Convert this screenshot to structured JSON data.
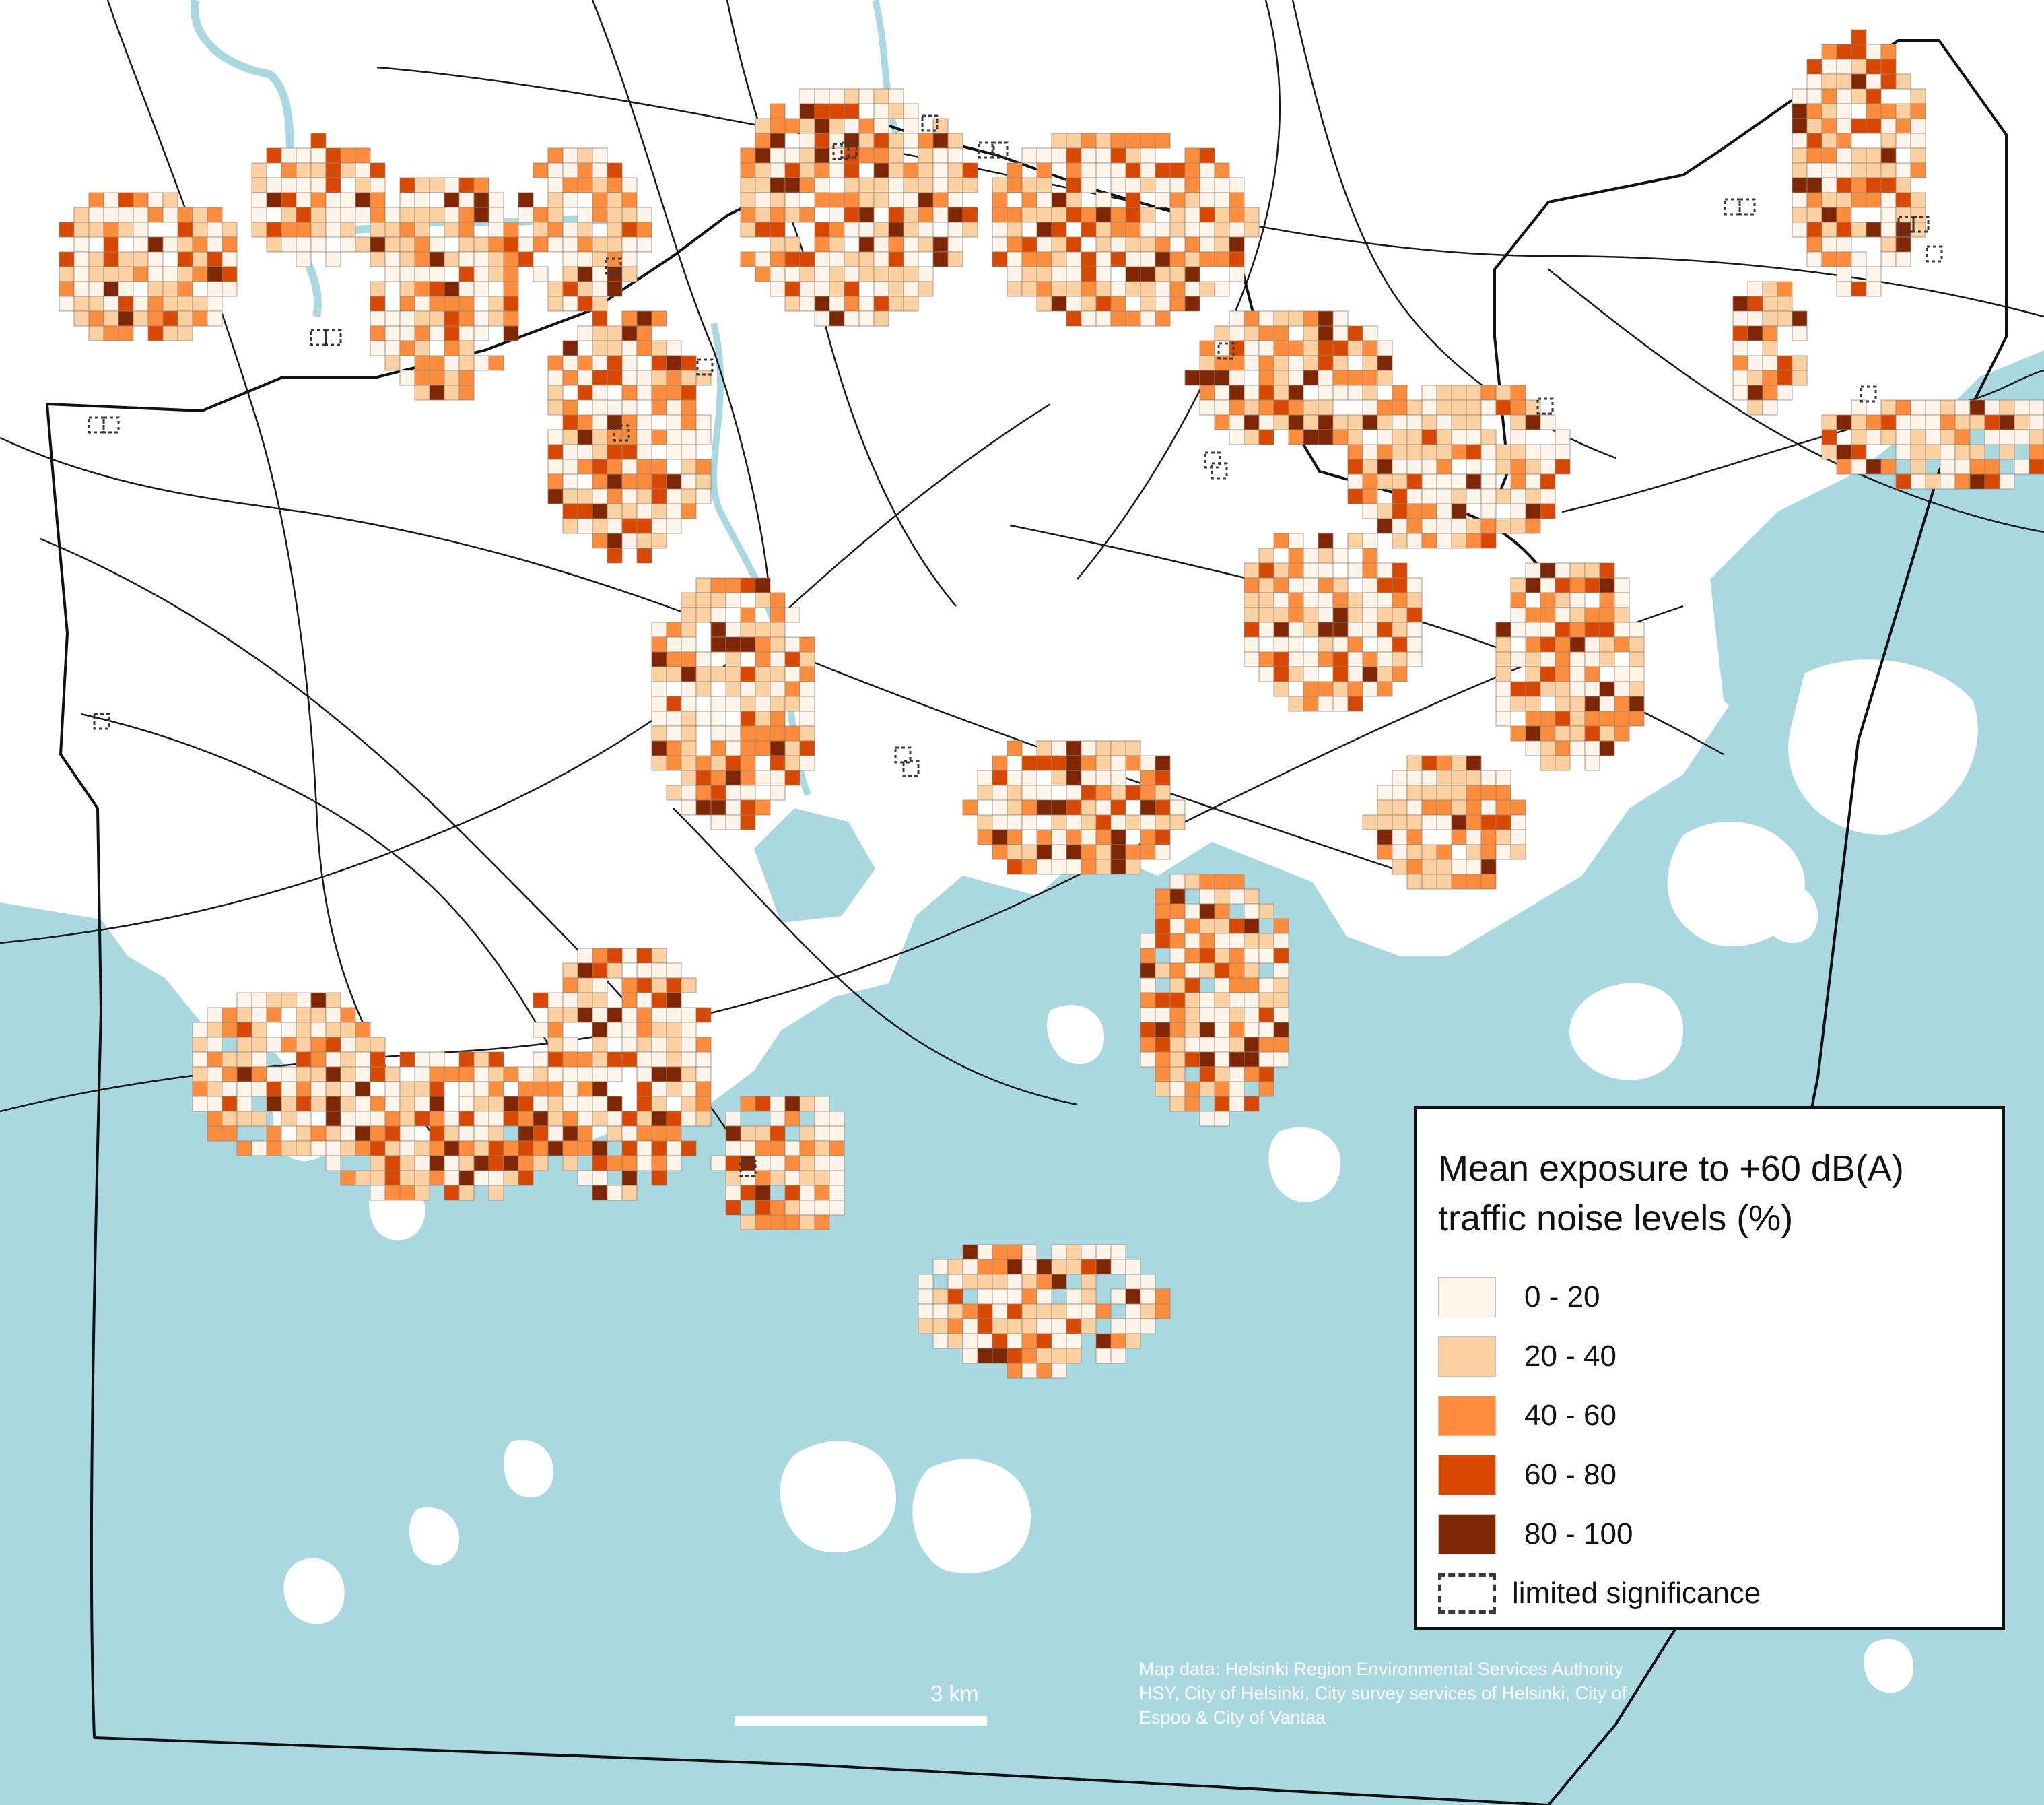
{
  "legend": {
    "title": "Mean exposure to +60 dB(A) traffic noise levels (%)",
    "classes": [
      {
        "label": "0 - 20",
        "color": "#fff4ea"
      },
      {
        "label": "20 - 40",
        "color": "#fdd0a2"
      },
      {
        "label": "40 - 60",
        "color": "#fd8d3c"
      },
      {
        "label": "60 - 80",
        "color": "#d94801"
      },
      {
        "label": "80 - 100",
        "color": "#7f2704"
      }
    ],
    "limited_label": "limited significance"
  },
  "scale": {
    "label": "3 km"
  },
  "credit": "Map data: Helsinki Region Environmental Services Authority HSY, City of Helsinki, City survey services of Helsinki, City of Espoo & City of Vantaa",
  "colors": {
    "sea": "#aad8e0",
    "land": "#ffffff",
    "road": "#1a1a1a",
    "river": "#aad8e0",
    "boundary": "#111111",
    "cell_stroke": "#8f877f"
  }
}
